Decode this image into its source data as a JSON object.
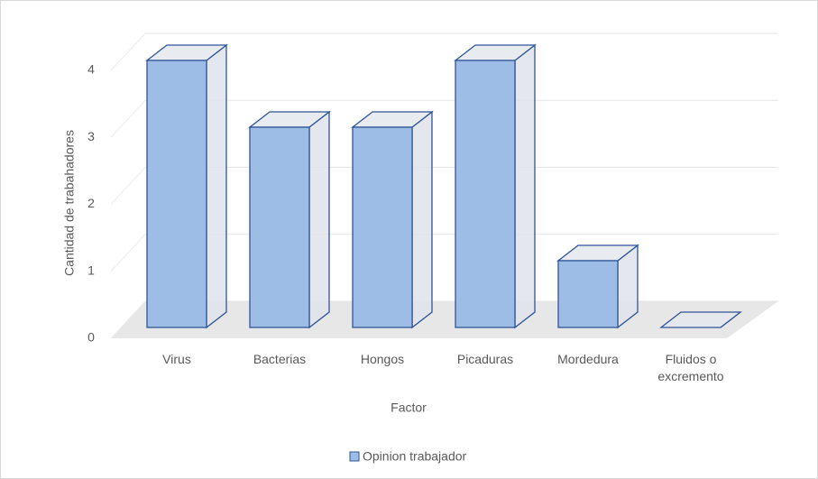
{
  "chart_data": {
    "type": "bar3d",
    "y_axis_label": "Cantidad de trabahadores",
    "x_axis_label": "Factor",
    "categories": [
      "Virus",
      "Bacterias",
      "Hongos",
      "Picaduras",
      "Mordedura",
      "Fluidos o excremento"
    ],
    "series": [
      {
        "name": "Opinion trabajador",
        "color": "#9dbde6",
        "values": [
          4,
          3,
          3,
          4,
          1,
          0
        ]
      }
    ],
    "ylim": [
      0,
      4
    ],
    "yticks": [
      0,
      1,
      2,
      3,
      4
    ],
    "grid": true,
    "legend": "bottom"
  }
}
